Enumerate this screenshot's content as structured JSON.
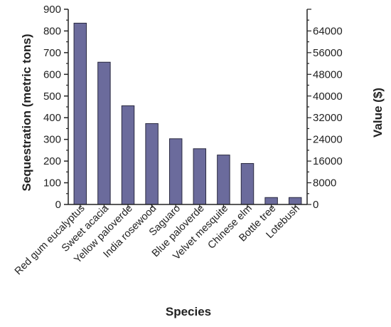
{
  "chart_data": {
    "type": "bar",
    "categories": [
      "Red gum eucalyptus",
      "Sweet acacia",
      "Yellow paloverde",
      "India rosewood",
      "Saguaro",
      "Blue paloverde",
      "Velvet mesquite",
      "Chinese elm",
      "Bottle tree",
      "Lotebush"
    ],
    "values": [
      836,
      656,
      455,
      373,
      303,
      257,
      228,
      189,
      32,
      32
    ],
    "xlabel": "Species",
    "ylabel": "Sequestration (metric tons)",
    "ylabel_right": "Value ($)",
    "ylim": [
      0,
      900
    ],
    "yticks": [
      "0",
      "100",
      "200",
      "300",
      "400",
      "500",
      "600",
      "700",
      "800",
      "900"
    ],
    "ylim_right": [
      0,
      72000
    ],
    "yticks_right": [
      "0",
      "8000",
      "16000",
      "24000",
      "32000",
      "40000",
      "48000",
      "56000",
      "64000"
    ],
    "grid": false,
    "colors": {
      "bar": "#6b6b9c",
      "bar_edge": "#2a2a40",
      "axis": "#222222"
    }
  }
}
